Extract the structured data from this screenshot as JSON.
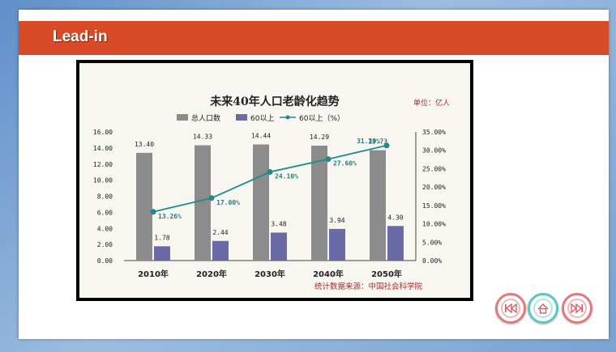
{
  "slide": {
    "title": "Lead-in"
  },
  "nav": {
    "prev_icon": "rewind-icon",
    "home_icon": "home-icon",
    "next_icon": "fast-forward-icon"
  },
  "chart_data": {
    "type": "bar",
    "title": "未来40年人口老龄化趋势",
    "unit_note": "单位：亿人",
    "source": "统计数据来源：中国社会科学院",
    "categories": [
      "2010年",
      "2020年",
      "2030年",
      "2040年",
      "2050年"
    ],
    "series": [
      {
        "name": "总人口数",
        "type": "bar",
        "axis": "left",
        "color": "#8c8c8c",
        "values": [
          13.4,
          14.33,
          14.44,
          14.29,
          13.73
        ],
        "labels": [
          "13.40",
          "14.33",
          "14.44",
          "14.29",
          "13.73"
        ]
      },
      {
        "name": "60以上",
        "type": "bar",
        "axis": "left",
        "color": "#6a6aa6",
        "values": [
          1.78,
          2.44,
          3.48,
          3.94,
          4.3
        ],
        "labels": [
          "1.78",
          "2.44",
          "3.48",
          "3.94",
          "4.30"
        ]
      },
      {
        "name": "60以上（%）",
        "type": "line",
        "axis": "right",
        "color": "#1f8a8a",
        "values": [
          13.26,
          17.0,
          24.1,
          27.6,
          31.3
        ],
        "labels": [
          "13.26%",
          "17.00%",
          "24.10%",
          "27.60%",
          "31.30%"
        ]
      }
    ],
    "ylim": [
      0,
      16
    ],
    "yticks": [
      "0.00",
      "2.00",
      "4.00",
      "6.00",
      "8.00",
      "10.00",
      "12.00",
      "14.00",
      "16.00"
    ],
    "y2lim": [
      0,
      35
    ],
    "y2ticks": [
      "0.00%",
      "5.00%",
      "10.00%",
      "15.00%",
      "20.00%",
      "25.00%",
      "30.00%",
      "35.00%"
    ],
    "legend_position": "top",
    "grid": false
  }
}
